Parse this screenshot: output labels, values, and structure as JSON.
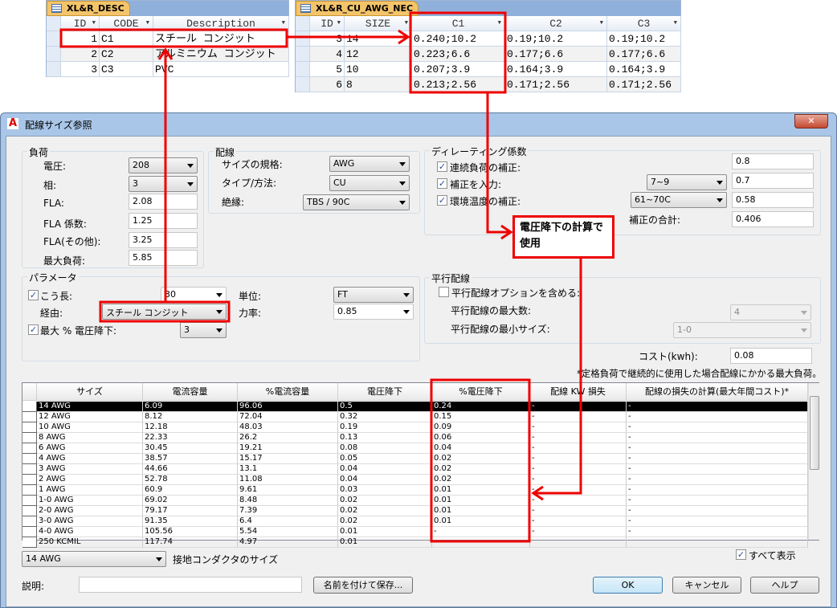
{
  "desc_table": {
    "tab": "XL&R_DESC",
    "columns": [
      "ID",
      "CODE",
      "Description"
    ],
    "rows": [
      [
        "1",
        "C1",
        "スチール コンジット"
      ],
      [
        "2",
        "C2",
        "アルミニウム コンジット"
      ],
      [
        "3",
        "C3",
        "PVC"
      ]
    ]
  },
  "awg_table": {
    "tab": "XL&R_CU_AWG_NEC",
    "columns": [
      "ID",
      "SIZE",
      "C1",
      "C2",
      "C3"
    ],
    "rows": [
      [
        "3",
        "14",
        "0.240;10.2",
        "0.19;10.2",
        "0.19;10.2"
      ],
      [
        "4",
        "12",
        "0.223;6.6",
        "0.177;6.6",
        "0.177;6.6"
      ],
      [
        "5",
        "10",
        "0.207;3.9",
        "0.164;3.9",
        "0.164;3.9"
      ],
      [
        "6",
        "8",
        "0.213;2.56",
        "0.171;2.56",
        "0.171;2.56"
      ]
    ]
  },
  "dialog": {
    "title": "配線サイズ参照",
    "close": "✕"
  },
  "load": {
    "title": "負荷",
    "voltage_label": "電圧:",
    "voltage": "208",
    "phase_label": "相:",
    "phase": "3",
    "fla_label": "FLA:",
    "fla": "2.08",
    "fla_factor_label": "FLA 係数:",
    "fla_factor": "1.25",
    "fla_other_label": "FLA(その他):",
    "fla_other": "3.25",
    "max_load_label": "最大負荷:",
    "max_load": "5.85"
  },
  "wiring": {
    "title": "配線",
    "size_std_label": "サイズの規格:",
    "size_std": "AWG",
    "type_label": "タイプ/方法:",
    "type": "CU",
    "insulation_label": "絶縁:",
    "insulation": "TBS / 90C"
  },
  "derating": {
    "title": "ディレーティング係数",
    "continuous_label": "連続負荷の補正:",
    "continuous": "0.8",
    "adjust_label": "補正を入力:",
    "adjust_range": "7~9",
    "adjust": "0.7",
    "ambient_label": "環境温度の補正:",
    "ambient_range": "61~70C",
    "ambient": "0.58",
    "total_label": "補正の合計:",
    "total": "0.406"
  },
  "params": {
    "title": "パラメータ",
    "length_label": "こう長:",
    "length": "30",
    "unit_label": "単位:",
    "unit": "FT",
    "via_label": "経由:",
    "via": "スチール コンジット",
    "pf_label": "力率:",
    "pf": "0.85",
    "maxvd_label": "最大 % 電圧降下:",
    "maxvd": "3"
  },
  "parallel": {
    "title": "平行配線",
    "include_label": "平行配線オプションを含める:",
    "max_label": "平行配線の最大数:",
    "max": "4",
    "min_label": "平行配線の最小サイズ:",
    "min": "1-0"
  },
  "cost": {
    "label": "コスト(kwh):",
    "value": "0.08",
    "note": "*定格負荷で継続的に使用した場合配線にかかる最大負荷。"
  },
  "grid": {
    "columns": [
      "サイズ",
      "電流容量",
      "%電流容量",
      "電圧降下",
      "%電圧降下",
      "配線 KW 損失",
      "配線の損失の計算(最大年間コスト)*"
    ],
    "rows": [
      [
        "14 AWG",
        "6.09",
        "96.06",
        "0.5",
        "0.24",
        "-",
        "-"
      ],
      [
        "12 AWG",
        "8.12",
        "72.04",
        "0.32",
        "0.15",
        "-",
        "-"
      ],
      [
        "10 AWG",
        "12.18",
        "48.03",
        "0.19",
        "0.09",
        "-",
        "-"
      ],
      [
        "8 AWG",
        "22.33",
        "26.2",
        "0.13",
        "0.06",
        "-",
        "-"
      ],
      [
        "6 AWG",
        "30.45",
        "19.21",
        "0.08",
        "0.04",
        "-",
        "-"
      ],
      [
        "4 AWG",
        "38.57",
        "15.17",
        "0.05",
        "0.02",
        "-",
        "-"
      ],
      [
        "3 AWG",
        "44.66",
        "13.1",
        "0.04",
        "0.02",
        "-",
        "-"
      ],
      [
        "2 AWG",
        "52.78",
        "11.08",
        "0.04",
        "0.02",
        "-",
        "-"
      ],
      [
        "1 AWG",
        "60.9",
        "9.61",
        "0.03",
        "0.01",
        "-",
        "-"
      ],
      [
        "1-0 AWG",
        "69.02",
        "8.48",
        "0.02",
        "0.01",
        "-",
        "-"
      ],
      [
        "2-0 AWG",
        "79.17",
        "7.39",
        "0.02",
        "0.01",
        "-",
        "-"
      ],
      [
        "3-0 AWG",
        "91.35",
        "6.4",
        "0.02",
        "0.01",
        "-",
        "-"
      ],
      [
        "4-0 AWG",
        "105.56",
        "5.54",
        "0.01",
        "-",
        "-",
        "-"
      ],
      [
        "250 KCMIL",
        "117.74",
        "4.97",
        "0.01",
        "",
        "",
        ""
      ]
    ]
  },
  "bottom": {
    "ground_size": "14 AWG",
    "ground_label": "接地コンダクタのサイズ",
    "show_all": "すべて表示",
    "desc_label": "説明:",
    "desc_value": "",
    "save_as": "名前を付けて保存...",
    "ok": "OK",
    "cancel": "キャンセル",
    "help": "ヘルプ"
  },
  "annotation": {
    "callout": "電圧降下の計算で使用",
    "color": "#e00000"
  }
}
